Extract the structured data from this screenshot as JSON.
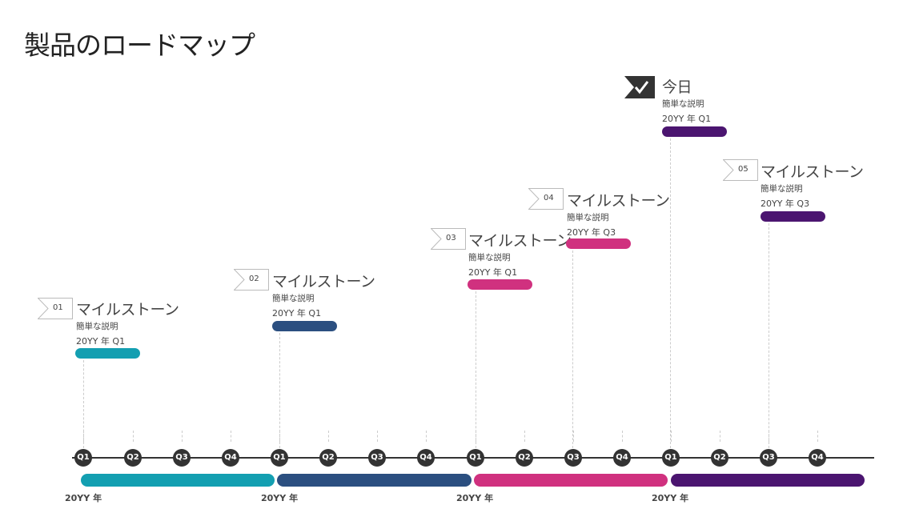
{
  "title": "製品のロードマップ",
  "colors": {
    "teal": "#139fb1",
    "navy": "#2b4f80",
    "magenta": "#d0317f",
    "purple": "#4b1570",
    "axis": "#333333"
  },
  "milestones": [
    {
      "number": "01",
      "title": "マイルストーン",
      "description": "簡単な説明",
      "date": "20YY 年 Q1",
      "color": "#139fb1",
      "icon": "flag-icon"
    },
    {
      "number": "02",
      "title": "マイルストーン",
      "description": "簡単な説明",
      "date": "20YY 年 Q1",
      "color": "#2b4f80",
      "icon": "flag-icon"
    },
    {
      "number": "03",
      "title": "マイルストーン",
      "description": "簡単な説明",
      "date": "20YY 年 Q1",
      "color": "#d0317f",
      "icon": "flag-icon"
    },
    {
      "number": "04",
      "title": "マイルストーン",
      "description": "簡単な説明",
      "date": "20YY 年 Q3",
      "color": "#d0317f",
      "icon": "flag-icon"
    },
    {
      "number": "",
      "title": "今日",
      "description": "簡単な説明",
      "date": "20YY 年 Q1",
      "color": "#4b1570",
      "icon": "checkmark-flag-icon"
    },
    {
      "number": "05",
      "title": "マイルストーン",
      "description": "簡単な説明",
      "date": "20YY 年 Q3",
      "color": "#4b1570",
      "icon": "flag-icon"
    }
  ],
  "quarters": [
    "Q1",
    "Q2",
    "Q3",
    "Q4",
    "Q1",
    "Q2",
    "Q3",
    "Q4",
    "Q1",
    "Q2",
    "Q3",
    "Q4",
    "Q1",
    "Q2",
    "Q3",
    "Q4"
  ],
  "years": [
    {
      "label": "20YY 年",
      "color": "#139fb1"
    },
    {
      "label": "20YY 年",
      "color": "#2b4f80"
    },
    {
      "label": "20YY 年",
      "color": "#d0317f"
    },
    {
      "label": "20YY 年",
      "color": "#4b1570"
    }
  ]
}
